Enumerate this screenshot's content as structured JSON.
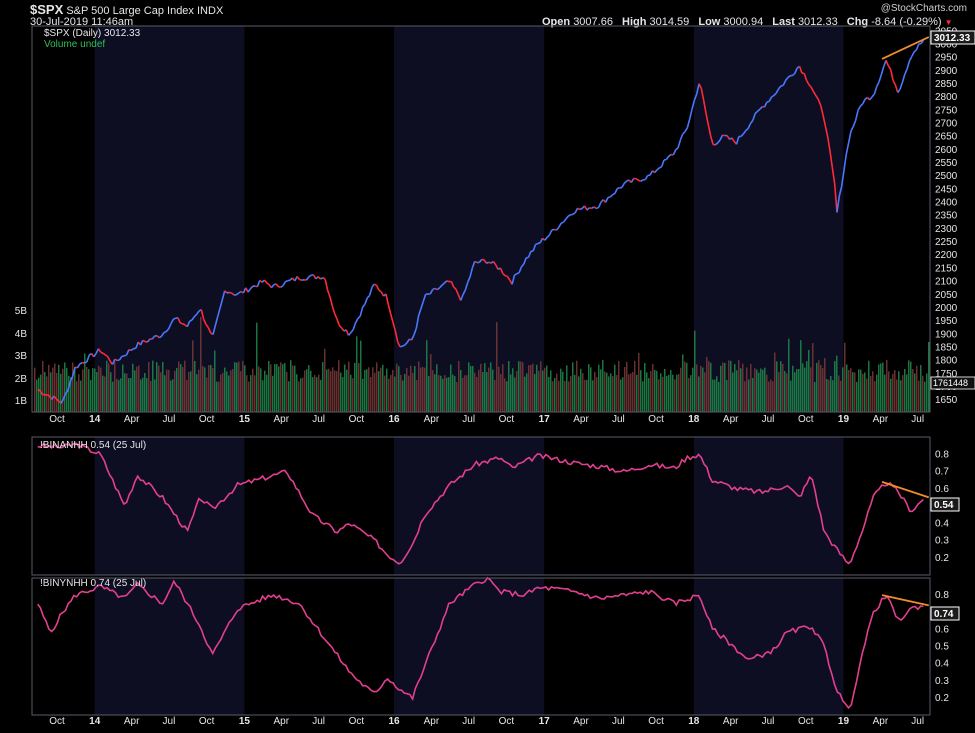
{
  "header": {
    "symbol": "$SPX",
    "name": "S&P 500 Large Cap Index",
    "exchange": "INDX",
    "datetime": "30-Jul-2019 11:46am",
    "open_label": "Open",
    "open": "3007.66",
    "high_label": "High",
    "high": "3014.59",
    "low_label": "Low",
    "low": "3000.94",
    "last_label": "Last",
    "last": "3012.33",
    "chg_label": "Chg",
    "chg": "-8.64 (-0.29%)",
    "brand": "@StockCharts.com"
  },
  "colors": {
    "background": "#000000",
    "shade_band": "#0d0e22",
    "price_up": "#4a78ff",
    "price_down": "#ff2a3a",
    "volume_up": "#1f8a4a",
    "volume_down": "#7a3a3a",
    "indicator_line": "#e23f8f",
    "trendline": "#f08c2a",
    "axis_text": "#e6e6e6"
  },
  "chart_data": [
    {
      "type": "line",
      "panel": "price",
      "legend": [
        "$SPX (Daily) 3012.33",
        "Volume undef"
      ],
      "last_value_label": "3012.33",
      "volume_value_label": "1761448",
      "x_ticks": [
        "Oct",
        "14",
        "Apr",
        "Jul",
        "Oct",
        "15",
        "Apr",
        "Jul",
        "Oct",
        "16",
        "Apr",
        "Jul",
        "Oct",
        "17",
        "Apr",
        "Jul",
        "Oct",
        "18",
        "Apr",
        "Jul",
        "Oct",
        "19",
        "Apr",
        "Jul"
      ],
      "y_ticks": [
        "3050",
        "3000",
        "2950",
        "2900",
        "2850",
        "2800",
        "2750",
        "2700",
        "2650",
        "2600",
        "2550",
        "2500",
        "2450",
        "2400",
        "2350",
        "2300",
        "2250",
        "2200",
        "2150",
        "2100",
        "2050",
        "2000",
        "1950",
        "1900",
        "1850",
        "1800",
        "1750",
        "1700",
        "1650"
      ],
      "volume_ticks": [
        "5B",
        "4B",
        "3B",
        "2B",
        "1B"
      ],
      "ylim": [
        1605,
        3070
      ],
      "x": [
        "2013-08",
        "2013-10",
        "2013-11",
        "2014-01",
        "2014-02",
        "2014-04",
        "2014-06",
        "2014-07",
        "2014-08",
        "2014-09",
        "2014-10",
        "2014-11",
        "2014-12",
        "2015-02",
        "2015-03",
        "2015-05",
        "2015-07",
        "2015-08",
        "2015-09",
        "2015-11",
        "2015-12",
        "2016-01",
        "2016-02",
        "2016-03",
        "2016-05",
        "2016-06",
        "2016-07",
        "2016-08",
        "2016-09",
        "2016-10",
        "2016-11",
        "2016-12",
        "2017-01",
        "2017-03",
        "2017-05",
        "2017-07",
        "2017-09",
        "2017-11",
        "2017-12",
        "2018-01",
        "2018-02",
        "2018-03",
        "2018-04",
        "2018-06",
        "2018-07",
        "2018-09",
        "2018-10",
        "2018-11",
        "2018-12",
        "2018-12",
        "2019-01",
        "2019-02",
        "2019-03",
        "2019-04",
        "2019-05",
        "2019-06",
        "2019-07"
      ],
      "y": [
        1690,
        1640,
        1775,
        1840,
        1790,
        1860,
        1900,
        1960,
        1930,
        2000,
        1880,
        2070,
        2050,
        2100,
        2080,
        2115,
        2120,
        1950,
        1900,
        2090,
        2040,
        1850,
        1880,
        2040,
        2100,
        2030,
        2170,
        2180,
        2150,
        2100,
        2180,
        2240,
        2280,
        2370,
        2390,
        2470,
        2500,
        2590,
        2680,
        2860,
        2620,
        2650,
        2630,
        2760,
        2810,
        2920,
        2840,
        2730,
        2420,
        2350,
        2650,
        2780,
        2810,
        2940,
        2820,
        2960,
        3015
      ]
    },
    {
      "type": "line",
      "panel": "indicator1",
      "legend": "!BINANHH 0.54 (25 Jul)",
      "last_value_label": "0.54",
      "y_ticks": [
        "0.8",
        "0.7",
        "0.6",
        "0.5",
        "0.4",
        "0.3",
        "0.2"
      ],
      "ylim": [
        0.1,
        0.9
      ],
      "x": [
        "2013-08",
        "2013-10",
        "2013-11",
        "2014-01",
        "2014-03",
        "2014-04",
        "2014-06",
        "2014-08",
        "2014-09",
        "2014-10",
        "2014-12",
        "2015-02",
        "2015-04",
        "2015-06",
        "2015-08",
        "2015-09",
        "2015-11",
        "2015-12",
        "2016-01",
        "2016-02",
        "2016-03",
        "2016-05",
        "2016-07",
        "2016-09",
        "2016-10",
        "2016-12",
        "2017-01",
        "2017-03",
        "2017-05",
        "2017-07",
        "2017-09",
        "2017-11",
        "2017-12",
        "2018-01",
        "2018-02",
        "2018-04",
        "2018-06",
        "2018-08",
        "2018-09",
        "2018-10",
        "2018-11",
        "2018-12",
        "2019-01",
        "2019-02",
        "2019-03",
        "2019-04",
        "2019-05",
        "2019-06",
        "2019-07"
      ],
      "y": [
        0.85,
        0.84,
        0.86,
        0.8,
        0.5,
        0.68,
        0.55,
        0.35,
        0.55,
        0.48,
        0.62,
        0.66,
        0.7,
        0.45,
        0.35,
        0.4,
        0.3,
        0.22,
        0.17,
        0.28,
        0.45,
        0.62,
        0.74,
        0.78,
        0.72,
        0.79,
        0.78,
        0.75,
        0.73,
        0.7,
        0.74,
        0.72,
        0.78,
        0.8,
        0.65,
        0.6,
        0.58,
        0.62,
        0.55,
        0.68,
        0.35,
        0.25,
        0.16,
        0.35,
        0.55,
        0.64,
        0.58,
        0.47,
        0.54
      ]
    },
    {
      "type": "line",
      "panel": "indicator2",
      "legend": "!BINYNHH 0.74 (25 Jul)",
      "last_value_label": "0.74",
      "y_ticks": [
        "0.8",
        "0.7",
        "0.6",
        "0.5",
        "0.4",
        "0.3",
        "0.2"
      ],
      "ylim": [
        0.1,
        0.9
      ],
      "x": [
        "2013-08",
        "2013-09",
        "2013-10",
        "2013-11",
        "2014-01",
        "2014-03",
        "2014-04",
        "2014-06",
        "2014-07",
        "2014-09",
        "2014-10",
        "2014-12",
        "2015-02",
        "2015-03",
        "2015-05",
        "2015-07",
        "2015-09",
        "2015-10",
        "2015-11",
        "2015-12",
        "2016-01",
        "2016-02",
        "2016-03",
        "2016-05",
        "2016-07",
        "2016-08",
        "2016-09",
        "2016-11",
        "2016-12",
        "2017-01",
        "2017-03",
        "2017-05",
        "2017-07",
        "2017-09",
        "2017-11",
        "2018-01",
        "2018-02",
        "2018-03",
        "2018-05",
        "2018-07",
        "2018-08",
        "2018-10",
        "2018-11",
        "2018-12",
        "2019-01",
        "2019-02",
        "2019-03",
        "2019-04",
        "2019-05",
        "2019-06",
        "2019-07"
      ],
      "y": [
        0.75,
        0.58,
        0.7,
        0.8,
        0.85,
        0.78,
        0.86,
        0.75,
        0.88,
        0.62,
        0.45,
        0.72,
        0.78,
        0.8,
        0.75,
        0.55,
        0.35,
        0.28,
        0.22,
        0.32,
        0.25,
        0.2,
        0.38,
        0.75,
        0.86,
        0.9,
        0.82,
        0.8,
        0.84,
        0.84,
        0.82,
        0.78,
        0.8,
        0.82,
        0.75,
        0.8,
        0.6,
        0.55,
        0.42,
        0.48,
        0.58,
        0.62,
        0.5,
        0.25,
        0.12,
        0.45,
        0.7,
        0.8,
        0.65,
        0.72,
        0.74
      ]
    }
  ]
}
